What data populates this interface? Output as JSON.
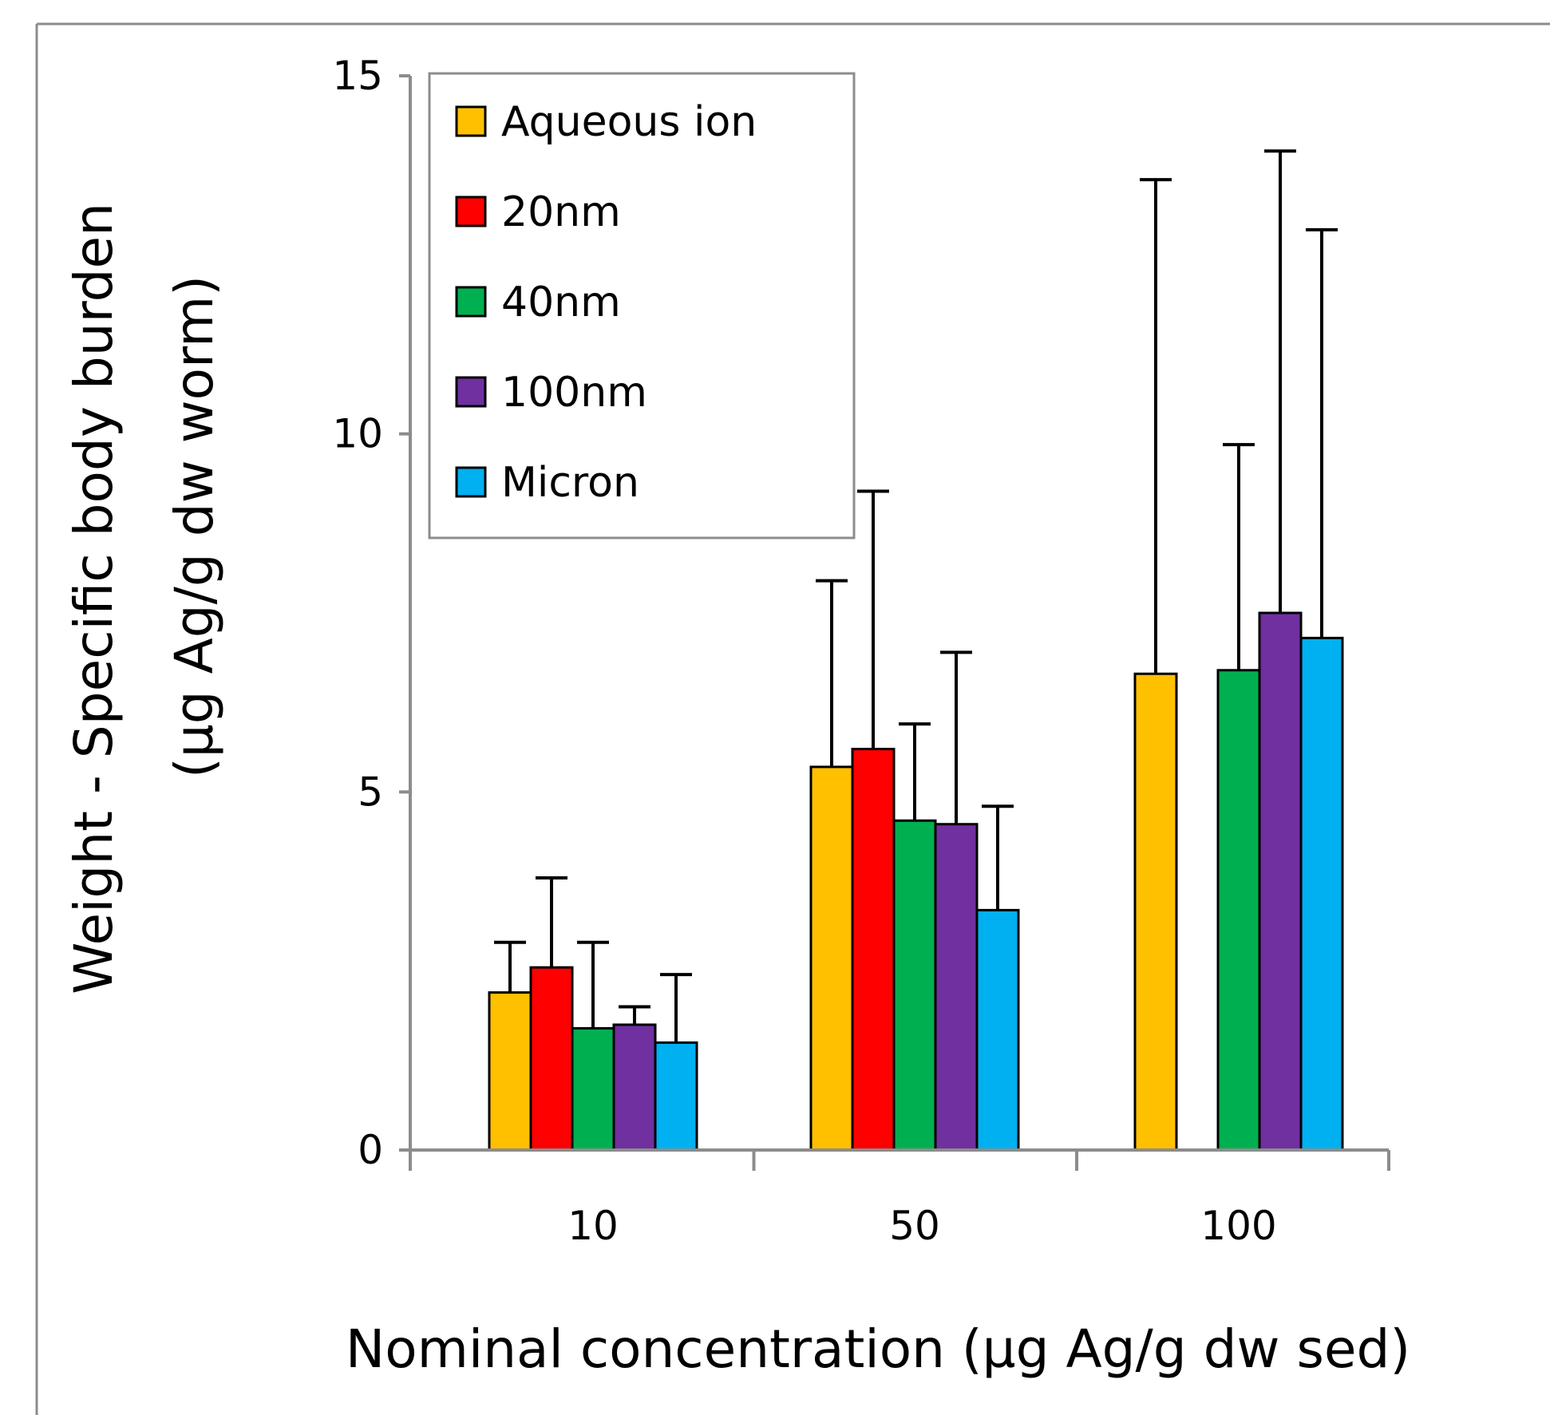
{
  "chart_data": {
    "type": "bar",
    "title": "",
    "xlabel": "Nominal concentration (µg Ag/g dw sed)",
    "ylabel_line1": "Weight - Specific body burden",
    "ylabel_line2": "(µg Ag/g dw worm)",
    "categories": [
      "10",
      "50",
      "100"
    ],
    "ylim": [
      0,
      15
    ],
    "yticks": [
      0,
      5,
      10,
      15
    ],
    "y_tick_labels": [
      "0",
      "5",
      "10",
      "15"
    ],
    "grid": false,
    "legend_position": "top-left",
    "series": [
      {
        "name": "Aqueous ion",
        "color": "#FFC000",
        "values": [
          2.2,
          5.35,
          6.65
        ],
        "error": [
          0.7,
          2.6,
          6.9
        ]
      },
      {
        "name": "20nm",
        "color": "#FF0000",
        "values": [
          2.55,
          5.6,
          null
        ],
        "error": [
          1.25,
          3.6,
          null
        ]
      },
      {
        "name": "40nm",
        "color": "#00B050",
        "values": [
          1.7,
          4.6,
          6.7
        ],
        "error": [
          1.2,
          1.35,
          3.15
        ]
      },
      {
        "name": "100nm",
        "color": "#7030A0",
        "values": [
          1.75,
          4.55,
          7.5
        ],
        "error": [
          0.25,
          2.4,
          6.45
        ]
      },
      {
        "name": "Micron",
        "color": "#00B0F0",
        "values": [
          1.5,
          3.35,
          7.15
        ],
        "error": [
          0.95,
          1.45,
          5.7
        ]
      }
    ]
  }
}
